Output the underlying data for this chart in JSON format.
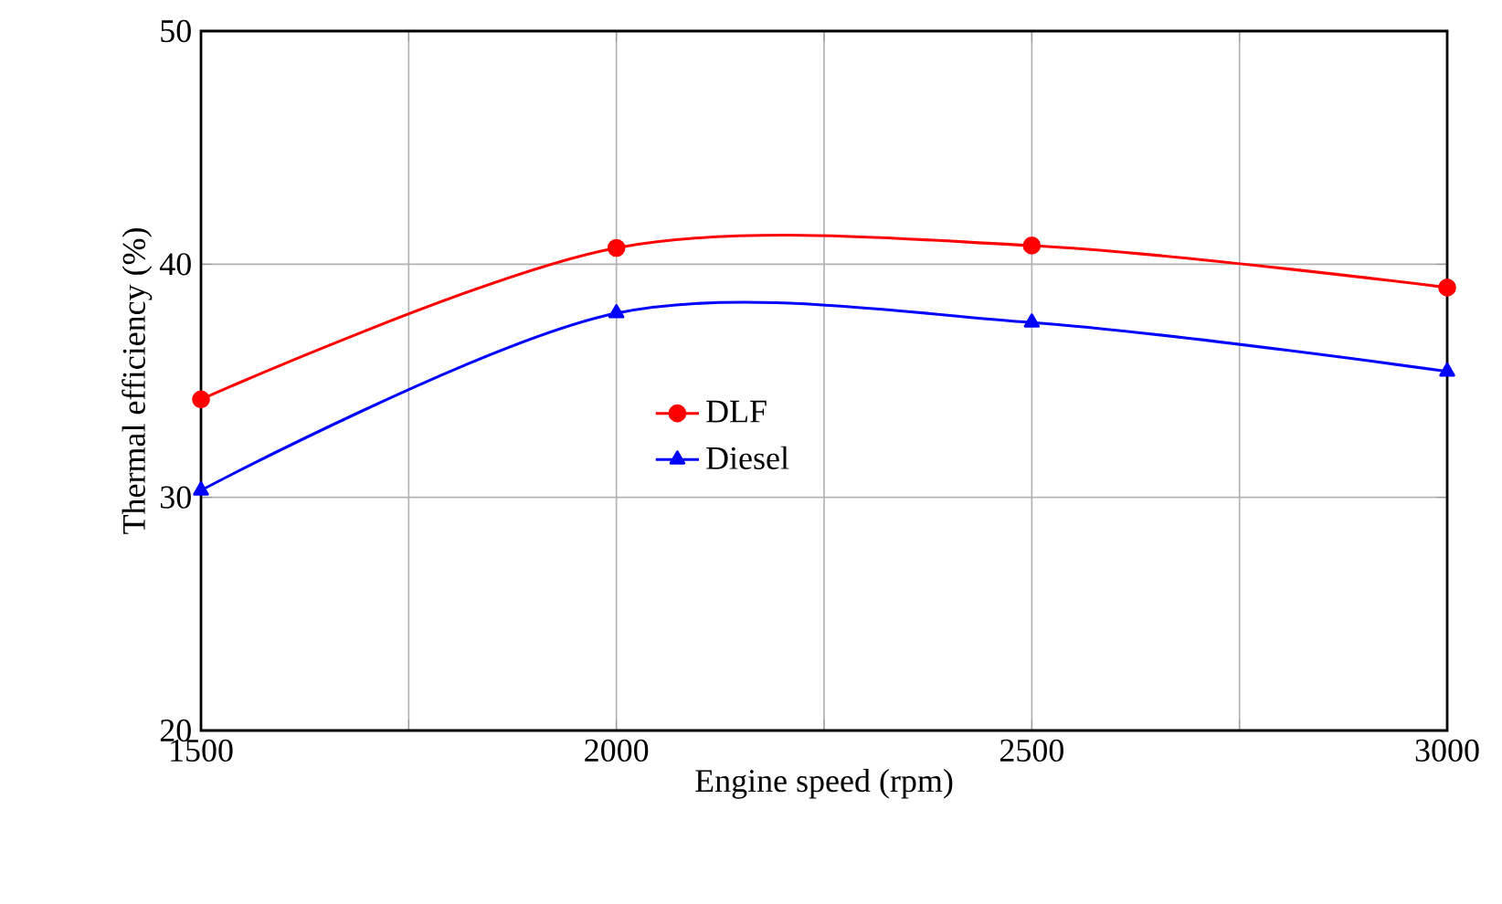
{
  "chart_data": {
    "type": "line",
    "xlabel": "Engine speed (rpm)",
    "ylabel": "Thermal efficiency (%)",
    "x": [
      1500,
      2000,
      2500,
      3000
    ],
    "series": [
      {
        "name": "DLF",
        "color": "#ff0000",
        "marker": "circle",
        "values": [
          34.2,
          40.7,
          40.8,
          39.0
        ]
      },
      {
        "name": "Diesel",
        "color": "#0000ff",
        "marker": "triangle",
        "values": [
          30.3,
          37.9,
          37.5,
          35.4
        ]
      }
    ],
    "xlim": [
      1500,
      3000
    ],
    "ylim": [
      20,
      50
    ],
    "xticks": [
      1500,
      {
        "value": 1750,
        "label": null
      },
      2000,
      {
        "value": 2250,
        "label": null
      },
      2500,
      {
        "value": 2750,
        "label": null
      },
      3000
    ],
    "yticks": [
      20,
      30,
      40,
      50
    ],
    "grid": true,
    "legend": "center",
    "line_style": "solid"
  }
}
